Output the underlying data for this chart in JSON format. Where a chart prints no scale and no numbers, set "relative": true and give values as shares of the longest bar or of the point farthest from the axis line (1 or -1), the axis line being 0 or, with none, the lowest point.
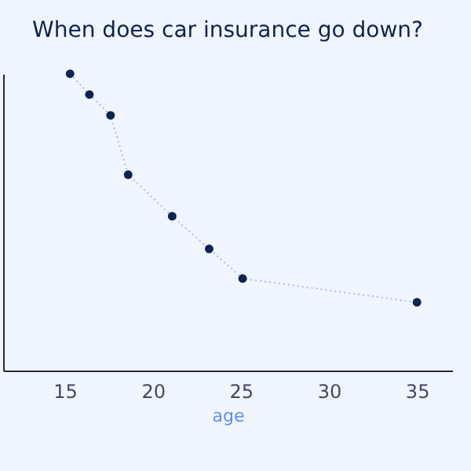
{
  "chart_data": {
    "type": "line",
    "title": "When does car insurance go down?",
    "xlabel": "age",
    "x": [
      15.3,
      16.4,
      17.6,
      18.6,
      21.1,
      23.2,
      25.1,
      35
    ],
    "series": [
      {
        "color": "#0d2350",
        "values": [
          1,
          0.93,
          0.86,
          0.66,
          0.52,
          0.41,
          0.31,
          0.23
        ]
      }
    ],
    "relative": true,
    "xlim": [
      11.5,
      37
    ],
    "xticks": [
      15,
      20,
      25,
      30,
      35
    ],
    "grid": false,
    "marker": "circle",
    "line_style": "dotted"
  }
}
